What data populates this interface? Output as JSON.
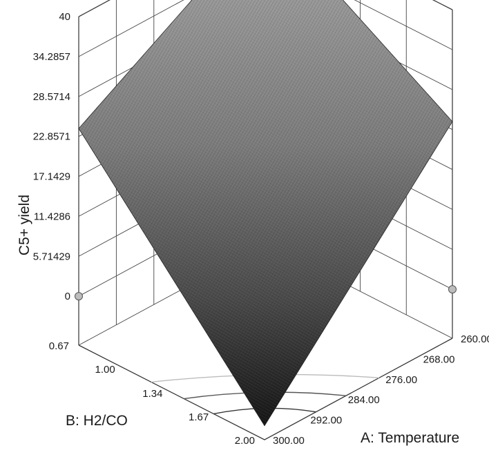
{
  "chart_data": {
    "type": "surface3d",
    "title": "",
    "zlabel": "C5+ yield",
    "xlabel": "A: Temperature",
    "ylabel": "B: H2/CO",
    "zlim": [
      0,
      40
    ],
    "z_ticks": [
      "0",
      "5.71429",
      "11.4286",
      "17.1429",
      "22.8571",
      "28.5714",
      "34.2857",
      "40"
    ],
    "x_ticks": [
      "260.00",
      "268.00",
      "276.00",
      "284.00",
      "292.00",
      "300.00"
    ],
    "y_ticks": [
      "0.67",
      "1.00",
      "1.34",
      "1.67",
      "2.00"
    ],
    "xlim": [
      260,
      300
    ],
    "ylim": [
      0.67,
      2.0
    ],
    "surface_corners": [
      {
        "temperature": 260,
        "h2_co": 0.67,
        "yield": 40
      },
      {
        "temperature": 300,
        "h2_co": 0.67,
        "yield": 24
      },
      {
        "temperature": 260,
        "h2_co": 2.0,
        "yield": 24
      },
      {
        "temperature": 300,
        "h2_co": 2.0,
        "yield": -5
      }
    ],
    "design_points": [
      {
        "temperature": 260,
        "h2_co": 0.67,
        "yield": 40
      },
      {
        "temperature": 300,
        "h2_co": 0.67,
        "yield": 0
      },
      {
        "temperature": 260,
        "h2_co": 2.0,
        "yield": 0
      }
    ],
    "grid": true,
    "colors": {
      "surface_high": "#9a9a9a",
      "surface_low": "#1e1e1e",
      "frame": "#333333",
      "points": "#bdbdbd"
    }
  }
}
